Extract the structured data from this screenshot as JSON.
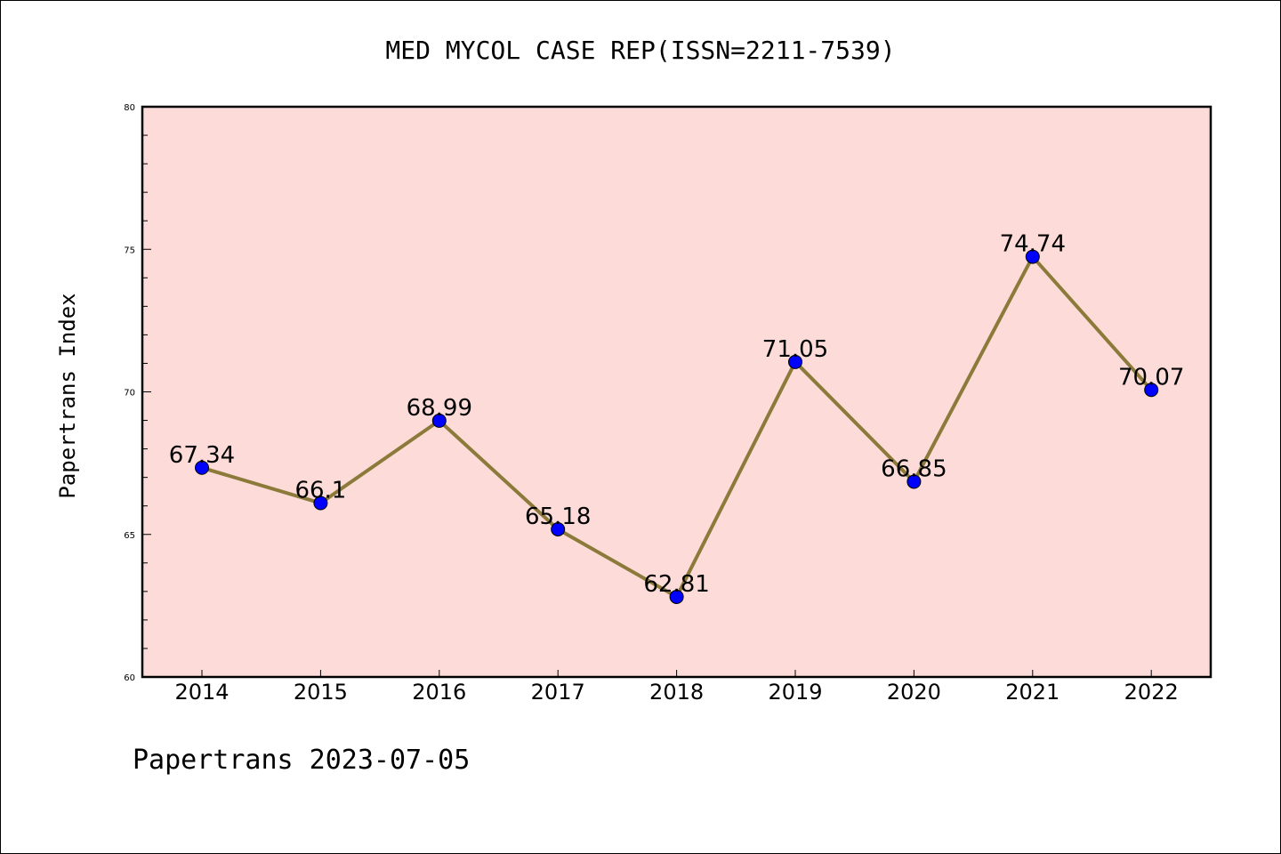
{
  "chart_data": {
    "type": "line",
    "title": "MED MYCOL CASE REP(ISSN=2211-7539)",
    "xlabel": "",
    "ylabel": "Papertrans Index",
    "categories": [
      "2014",
      "2015",
      "2016",
      "2017",
      "2018",
      "2019",
      "2020",
      "2021",
      "2022"
    ],
    "series": [
      {
        "values": [
          67.34,
          66.1,
          68.99,
          65.18,
          62.81,
          71.05,
          66.85,
          74.74,
          70.07
        ]
      }
    ],
    "data_labels": [
      "67.34",
      "66.1",
      "68.99",
      "65.18",
      "62.81",
      "71.05",
      "66.85",
      "74.74",
      "70.07"
    ],
    "ylim": [
      60,
      80
    ],
    "yticks": [
      "60",
      "65",
      "70",
      "75",
      "80"
    ],
    "grid": false,
    "colors": {
      "plot_background": "#fddbd8",
      "line": "#8b7a3a",
      "marker": "#0000ff"
    }
  },
  "footer": "Papertrans 2023-07-05"
}
